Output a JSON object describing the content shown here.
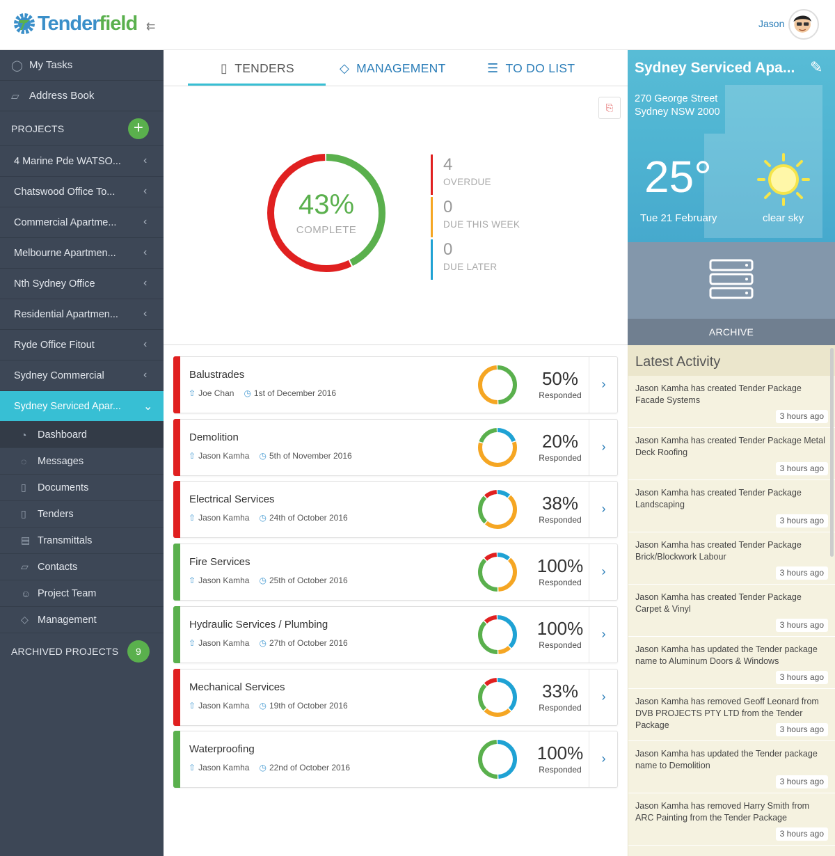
{
  "header": {
    "logo": "Tenderfield",
    "user": "Jason"
  },
  "sidebar": {
    "top": [
      {
        "label": "My Tasks",
        "icon": "check-circle-icon"
      },
      {
        "label": "Address Book",
        "icon": "book-icon"
      }
    ],
    "projects_label": "PROJECTS",
    "projects": [
      "4 Marine Pde WATSO...",
      "Chatswood Office To...",
      "Commercial Apartme...",
      "Melbourne Apartmen...",
      "Nth Sydney Office",
      "Residential Apartmen...",
      "Ryde Office Fitout",
      "Sydney Commercial",
      "Sydney Serviced Apar..."
    ],
    "sub": [
      {
        "label": "Dashboard",
        "icon": "dashboard-icon"
      },
      {
        "label": "Messages",
        "icon": "message-icon"
      },
      {
        "label": "Documents",
        "icon": "documents-icon"
      },
      {
        "label": "Tenders",
        "icon": "tablet-icon"
      },
      {
        "label": "Transmittals",
        "icon": "transmittals-icon"
      },
      {
        "label": "Contacts",
        "icon": "contacts-icon"
      },
      {
        "label": "Project Team",
        "icon": "team-icon"
      },
      {
        "label": "Management",
        "icon": "diamond-icon"
      }
    ],
    "archived_label": "ARCHIVED PROJECTS",
    "archived_count": "9"
  },
  "tabs": [
    {
      "label": "TENDERS"
    },
    {
      "label": "MANAGEMENT"
    },
    {
      "label": "TO DO LIST"
    }
  ],
  "summary": {
    "complete_pct": "43%",
    "complete_label": "COMPLETE",
    "complete_fraction": 0.43,
    "stats": [
      {
        "num": "4",
        "label": "OVERDUE",
        "color": "#e02020"
      },
      {
        "num": "0",
        "label": "DUE THIS WEEK",
        "color": "#f5a623"
      },
      {
        "num": "0",
        "label": "DUE LATER",
        "color": "#1fa2d4"
      }
    ]
  },
  "weather": {
    "title": "Sydney Serviced Apa...",
    "addr1": "270 George Street",
    "addr2": "Sydney NSW 2000",
    "temp": "25°",
    "date": "Tue 21 February",
    "desc": "clear sky"
  },
  "archive_label": "ARCHIVE",
  "tenders": [
    {
      "title": "Balustrades",
      "person": "Joe Chan",
      "date": "1st of December 2016",
      "pct": "50%",
      "resp": "Responded",
      "stripe": "#e02020",
      "segments": [
        {
          "v": 0.5,
          "c": "#5ab04d"
        },
        {
          "v": 0.5,
          "c": "#f5a623"
        }
      ]
    },
    {
      "title": "Demolition",
      "person": "Jason Kamha",
      "date": "5th of November 2016",
      "pct": "20%",
      "resp": "Responded",
      "stripe": "#e02020",
      "segments": [
        {
          "v": 0.2,
          "c": "#1fa2d4"
        },
        {
          "v": 0.6,
          "c": "#f5a623"
        },
        {
          "v": 0.2,
          "c": "#5ab04d"
        }
      ]
    },
    {
      "title": "Electrical Services",
      "person": "Jason Kamha",
      "date": "24th of October 2016",
      "pct": "38%",
      "resp": "Responded",
      "stripe": "#e02020",
      "segments": [
        {
          "v": 0.12,
          "c": "#1fa2d4"
        },
        {
          "v": 0.5,
          "c": "#f5a623"
        },
        {
          "v": 0.26,
          "c": "#5ab04d"
        },
        {
          "v": 0.12,
          "c": "#e02020"
        }
      ]
    },
    {
      "title": "Fire Services",
      "person": "Jason Kamha",
      "date": "25th of October 2016",
      "pct": "100%",
      "resp": "Responded",
      "stripe": "#5ab04d",
      "segments": [
        {
          "v": 0.12,
          "c": "#1fa2d4"
        },
        {
          "v": 0.38,
          "c": "#f5a623"
        },
        {
          "v": 0.38,
          "c": "#5ab04d"
        },
        {
          "v": 0.12,
          "c": "#e02020"
        }
      ]
    },
    {
      "title": "Hydraulic Services / Plumbing",
      "person": "Jason Kamha",
      "date": "27th of October 2016",
      "pct": "100%",
      "resp": "Responded",
      "stripe": "#5ab04d",
      "segments": [
        {
          "v": 0.38,
          "c": "#1fa2d4"
        },
        {
          "v": 0.12,
          "c": "#f5a623"
        },
        {
          "v": 0.38,
          "c": "#5ab04d"
        },
        {
          "v": 0.12,
          "c": "#e02020"
        }
      ]
    },
    {
      "title": "Mechanical Services",
      "person": "Jason Kamha",
      "date": "19th of October 2016",
      "pct": "33%",
      "resp": "Responded",
      "stripe": "#e02020",
      "segments": [
        {
          "v": 0.38,
          "c": "#1fa2d4"
        },
        {
          "v": 0.25,
          "c": "#f5a623"
        },
        {
          "v": 0.25,
          "c": "#5ab04d"
        },
        {
          "v": 0.12,
          "c": "#e02020"
        }
      ]
    },
    {
      "title": "Waterproofing",
      "person": "Jason Kamha",
      "date": "22nd of October 2016",
      "pct": "100%",
      "resp": "Responded",
      "stripe": "#5ab04d",
      "segments": [
        {
          "v": 0.5,
          "c": "#1fa2d4"
        },
        {
          "v": 0.5,
          "c": "#5ab04d"
        }
      ]
    }
  ],
  "activity": {
    "title": "Latest Activity",
    "items": [
      {
        "text": "Jason Kamha has created Tender Package Facade Systems",
        "time": "3 hours ago"
      },
      {
        "text": "Jason Kamha has created Tender Package Metal Deck Roofing",
        "time": "3 hours ago"
      },
      {
        "text": "Jason Kamha has created Tender Package Landscaping",
        "time": "3 hours ago"
      },
      {
        "text": "Jason Kamha has created Tender Package Brick/Blockwork Labour",
        "time": "3 hours ago"
      },
      {
        "text": "Jason Kamha has created Tender Package Carpet & Vinyl",
        "time": "3 hours ago"
      },
      {
        "text": "Jason Kamha has updated the Tender package name to Aluminum Doors & Windows",
        "time": "3 hours ago"
      },
      {
        "text": "Jason Kamha has removed Geoff Leonard from DVB PROJECTS PTY LTD from the Tender Package",
        "time": "3 hours ago"
      },
      {
        "text": "Jason Kamha has updated the Tender package name to Demolition",
        "time": "3 hours ago"
      },
      {
        "text": "Jason Kamha has removed Harry Smith from ARC Painting from the Tender Package",
        "time": "3 hours ago"
      }
    ]
  }
}
